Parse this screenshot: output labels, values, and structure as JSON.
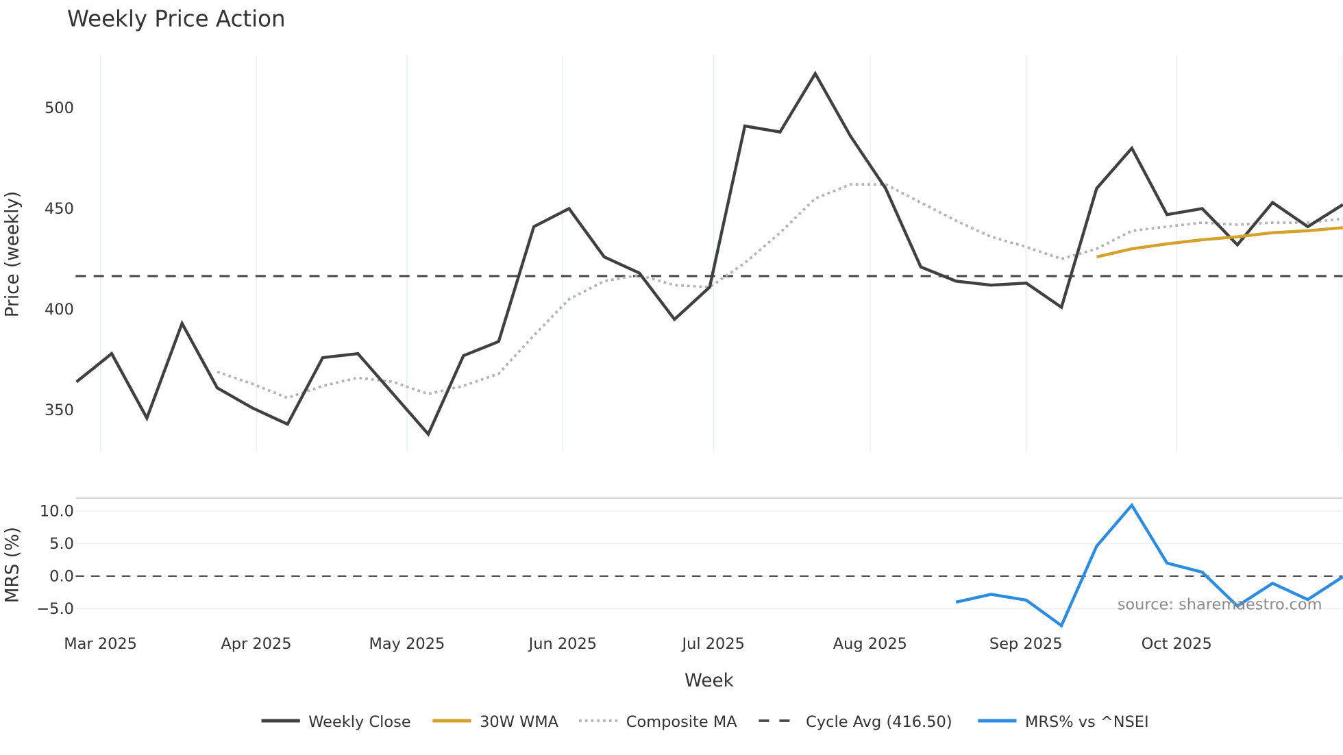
{
  "chart_data": {
    "type": "line",
    "title": "Weekly Price Action",
    "xlabel": "Week",
    "source_note": "source: sharemaestro.com",
    "x_tick_labels": [
      "Mar 2025",
      "Apr 2025",
      "May 2025",
      "Jun 2025",
      "Jul 2025",
      "Aug 2025",
      "Sep 2025",
      "Oct 2025"
    ],
    "panels": [
      {
        "name": "price",
        "ylabel": "Price (weekly)",
        "ylim": [
          330,
          525
        ],
        "yticks": [
          350,
          400,
          450,
          500
        ],
        "ytick_labels": [
          "350",
          "400",
          "450",
          "500"
        ],
        "grid": true
      },
      {
        "name": "mrs",
        "ylabel": "MRS (%)",
        "ylim": [
          -8.5,
          12
        ],
        "yticks": [
          -5.0,
          0.0,
          5.0,
          10.0
        ],
        "ytick_labels": [
          "−5.0",
          "0.0",
          "5.0",
          "10.0"
        ],
        "grid": true
      }
    ],
    "week_index": [
      1,
      2,
      3,
      4,
      5,
      6,
      7,
      8,
      9,
      10,
      11,
      12,
      13,
      14,
      15,
      16,
      17,
      18,
      19,
      20,
      21,
      22,
      23,
      24,
      25,
      26,
      27,
      28,
      29,
      30,
      31,
      32,
      33,
      34,
      35,
      36,
      37
    ],
    "series": [
      {
        "name": "Weekly Close",
        "panel": "price",
        "color": "#404040",
        "style": "solid",
        "start_index": 0,
        "values": [
          364,
          378,
          346,
          393,
          361,
          351,
          343,
          376,
          378,
          358,
          338,
          377,
          384,
          441,
          450,
          426,
          418,
          395,
          411,
          491,
          488,
          517,
          486,
          460,
          421,
          414,
          412,
          413,
          401,
          460,
          480,
          447,
          450,
          432,
          453,
          441,
          452
        ]
      },
      {
        "name": "30W WMA",
        "panel": "price",
        "color": "#d4a22a",
        "style": "solid",
        "start_index": 29,
        "values": [
          426,
          430,
          432.5,
          434.5,
          436,
          438,
          439,
          440.5
        ]
      },
      {
        "name": "Composite MA",
        "panel": "price",
        "color": "#b3b3b3",
        "style": "dotted",
        "start_index": 4,
        "values": [
          369,
          363,
          356,
          362,
          366,
          364,
          358,
          362,
          368,
          387,
          405,
          414,
          417,
          412,
          411,
          423,
          438,
          455,
          462,
          462,
          453,
          444,
          436,
          431,
          425,
          430,
          439,
          441,
          443,
          442,
          443,
          443,
          445
        ]
      },
      {
        "name": "Cycle Avg (416.50)",
        "panel": "price",
        "color": "#4a4a4a",
        "style": "dashed",
        "constant": 416.5
      },
      {
        "name": "MRS% vs ^NSEI",
        "panel": "mrs",
        "color": "#2b8ce3",
        "style": "solid",
        "start_index": 25,
        "values": [
          -4.0,
          -2.8,
          -3.7,
          -7.6,
          4.6,
          10.9,
          2.0,
          0.6,
          -4.6,
          -1.1,
          -3.6,
          -0.1
        ]
      }
    ],
    "legend": {
      "position": "bottom",
      "entries": [
        "Weekly Close",
        "30W WMA",
        "Composite MA",
        "Cycle Avg (416.50)",
        "MRS% vs ^NSEI"
      ]
    }
  }
}
